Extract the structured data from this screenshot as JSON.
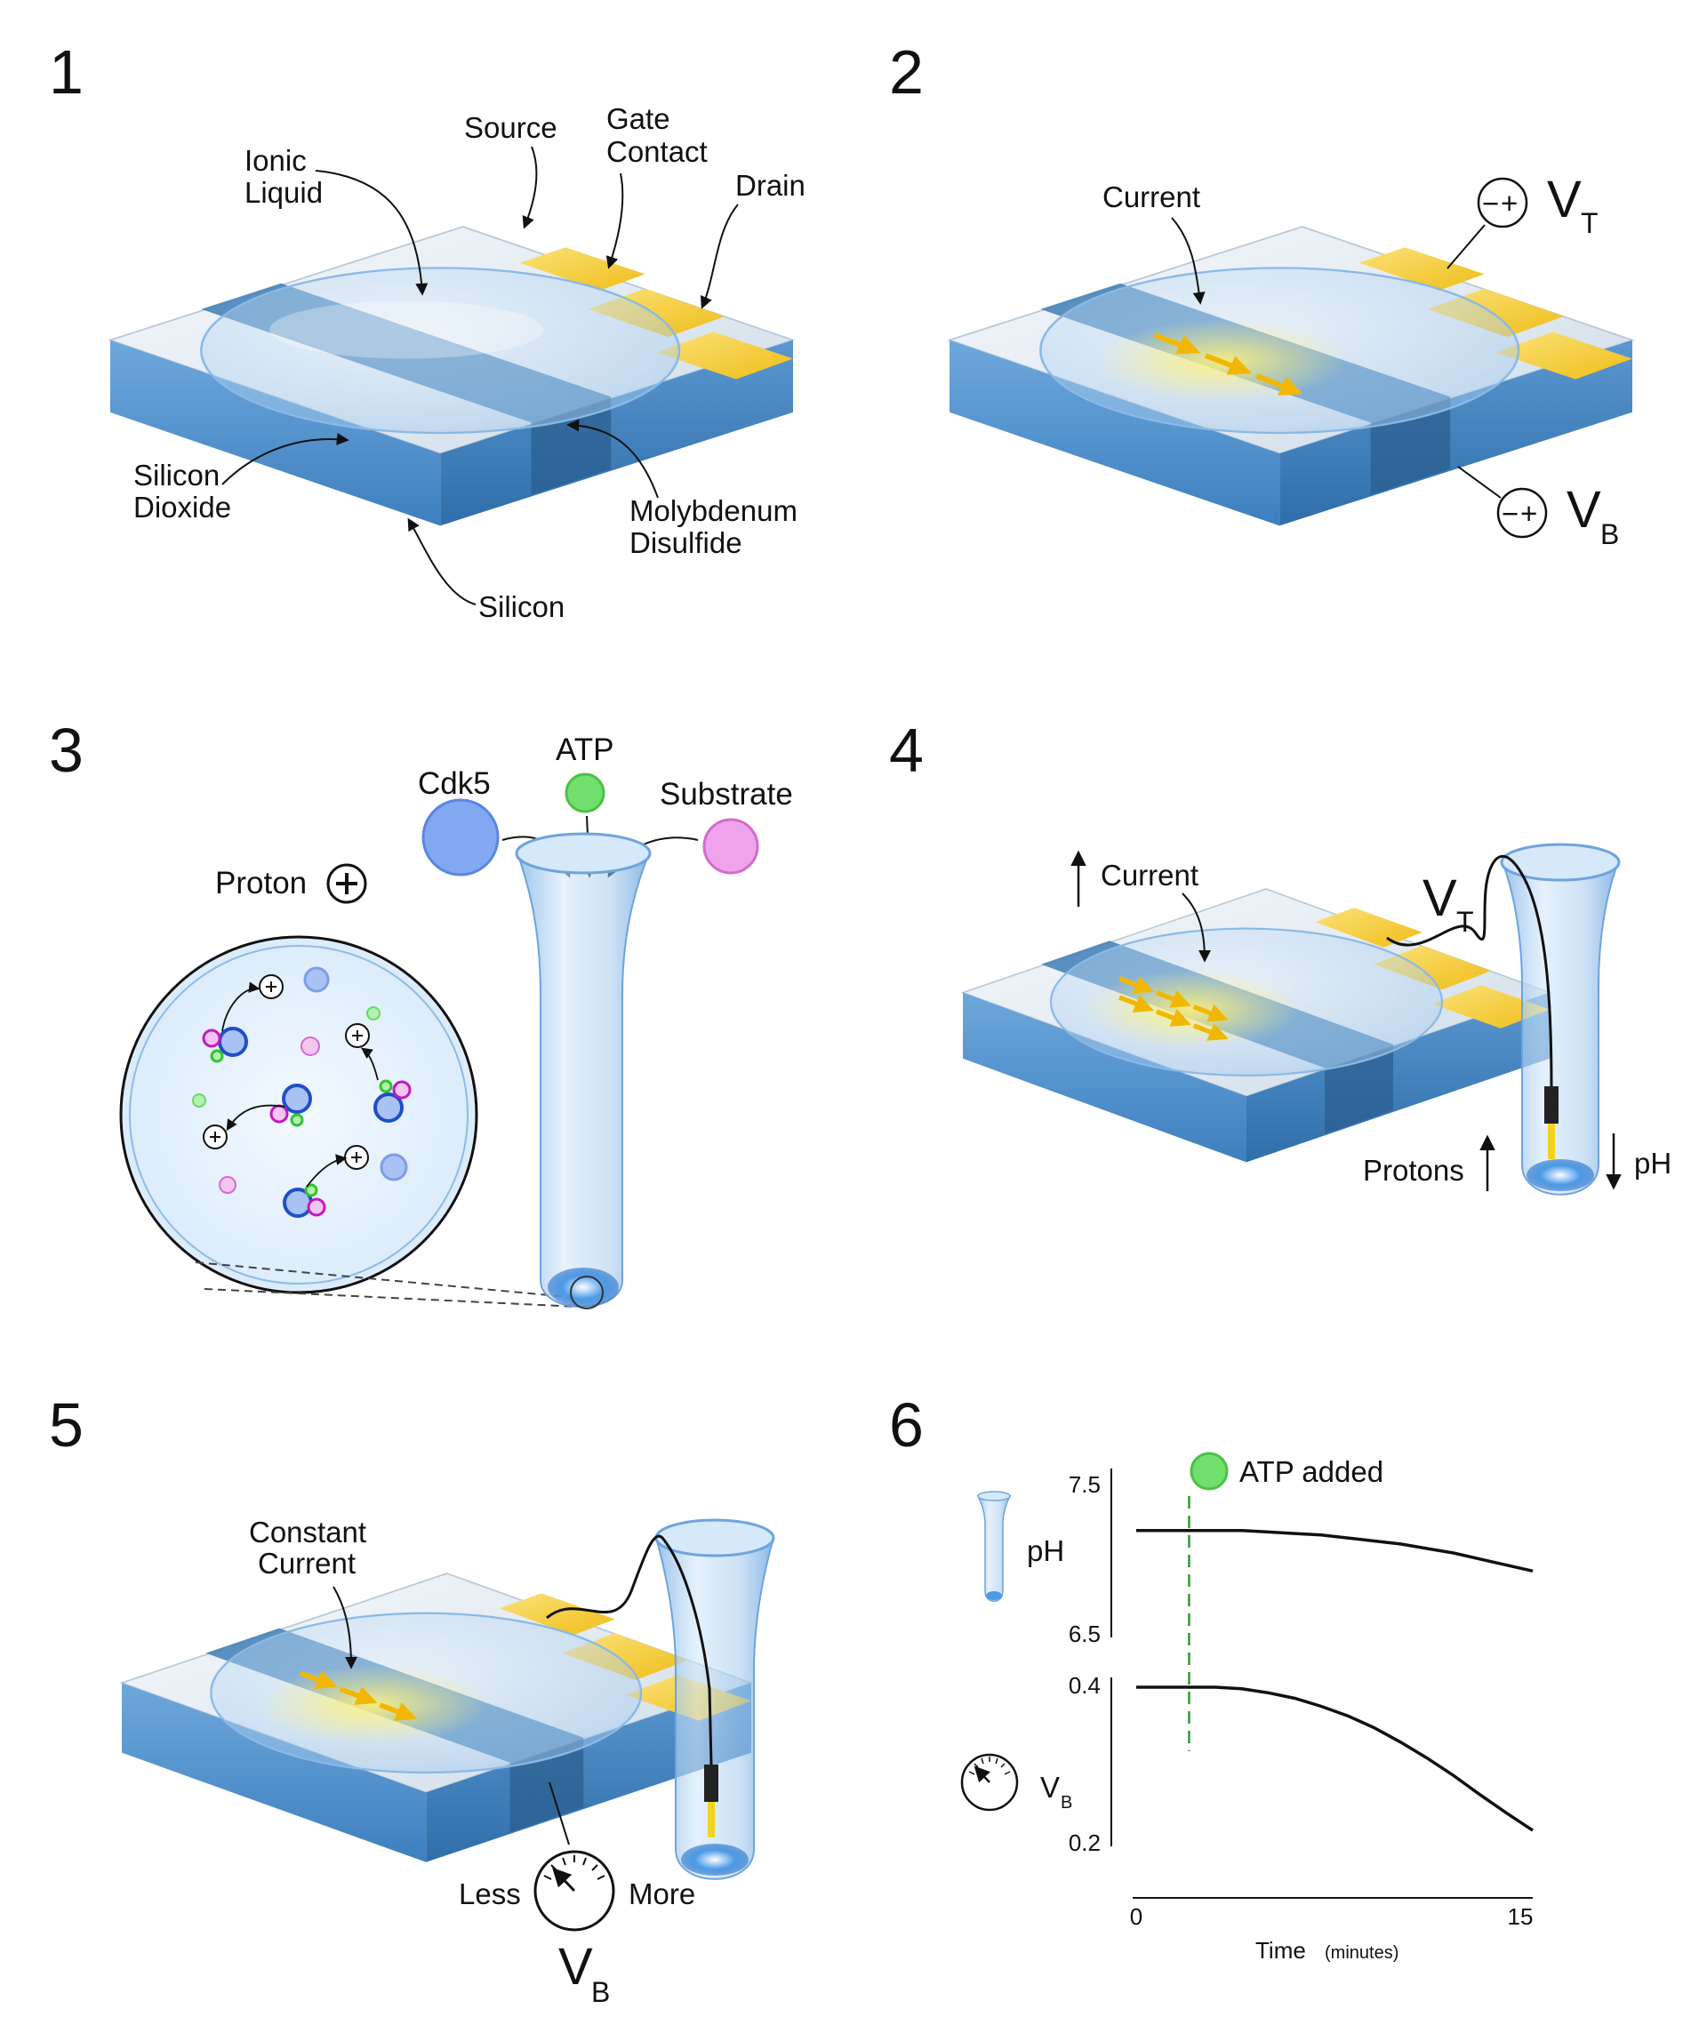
{
  "panels": [
    {
      "number": "1"
    },
    {
      "number": "2"
    },
    {
      "number": "3"
    },
    {
      "number": "4"
    },
    {
      "number": "5"
    },
    {
      "number": "6"
    }
  ],
  "panel1": {
    "source": "Source",
    "gate_line1": "Gate",
    "gate_line2": "Contact",
    "drain": "Drain",
    "ionic_line1": "Ionic",
    "ionic_line2": "Liquid",
    "sio2_line1": "Silicon",
    "sio2_line2": "Dioxide",
    "mos2_line1": "Molybdenum",
    "mos2_line2": "Disulfide",
    "silicon": "Silicon"
  },
  "panel2": {
    "current": "Current",
    "vt_main": "V",
    "vt_sub": "T",
    "vb_main": "V",
    "vb_sub": "B",
    "minus": "−",
    "plus": "+"
  },
  "panel3": {
    "cdk5": "Cdk5",
    "atp": "ATP",
    "substrate": "Substrate",
    "proton": "Proton",
    "plus": "+"
  },
  "panel4": {
    "current": "Current",
    "vt_main": "V",
    "vt_sub": "T",
    "protons": "Protons",
    "ph": "pH"
  },
  "panel5": {
    "constant_line1": "Constant",
    "constant_line2": "Current",
    "less": "Less",
    "more": "More",
    "vb_main": "V",
    "vb_sub": "B"
  },
  "colors": {
    "gold": "#f2c72a",
    "substrate_blue": "#4f8dc6",
    "surface": "#dde7f0",
    "mos2": "#3f7fb6",
    "cdk5": "#7da5f0",
    "atp": "#6fe06a",
    "substrate_mol": "#ea9ae6",
    "threshold_line": "#2e9a2e"
  },
  "chart_data": {
    "type": "line",
    "annotation": "ATP added",
    "annotation_x": 2,
    "x_axis": {
      "label": "Time",
      "unit": "(minutes)",
      "ticks": [
        0,
        15
      ],
      "range": [
        0,
        15
      ]
    },
    "subplots": [
      {
        "name": "pH",
        "ylabel": "pH",
        "yticks": [
          "7.5",
          "6.5"
        ],
        "ylim": [
          6.5,
          7.5
        ],
        "x": [
          0,
          1,
          2,
          3,
          4,
          5,
          6,
          7,
          8,
          9,
          10,
          11,
          12,
          13,
          14,
          15
        ],
        "values": [
          7.2,
          7.2,
          7.2,
          7.2,
          7.2,
          7.19,
          7.18,
          7.17,
          7.15,
          7.13,
          7.11,
          7.08,
          7.05,
          7.01,
          6.97,
          6.93
        ]
      },
      {
        "name": "VB",
        "ylabel_main": "V",
        "ylabel_sub": "B",
        "yticks": [
          "0.4",
          "0.2"
        ],
        "ylim": [
          0.2,
          0.4
        ],
        "x": [
          0,
          1,
          2,
          3,
          4,
          5,
          6,
          7,
          8,
          9,
          10,
          11,
          12,
          13,
          14,
          15
        ],
        "values": [
          0.4,
          0.4,
          0.4,
          0.4,
          0.398,
          0.393,
          0.386,
          0.376,
          0.364,
          0.349,
          0.331,
          0.311,
          0.289,
          0.265,
          0.242,
          0.22
        ]
      }
    ]
  }
}
